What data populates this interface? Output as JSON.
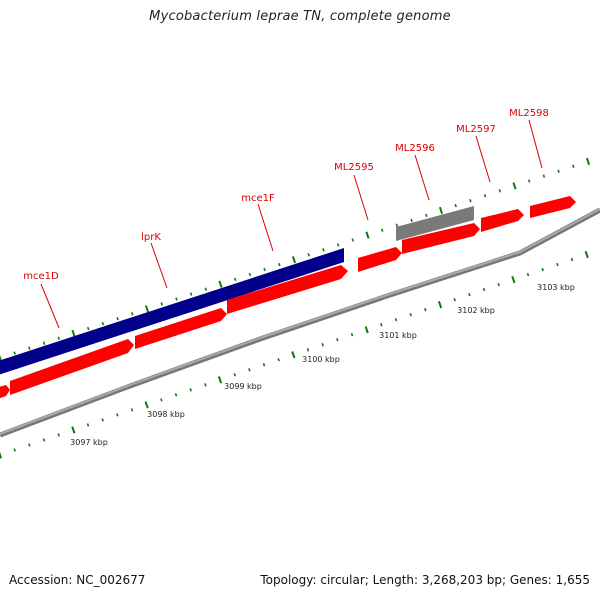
{
  "title": "Mycobacterium leprae TN, complete genome",
  "footer": {
    "accession": "Accession: NC_002677",
    "info": "Topology: circular; Length: 3,268,203 bp; Genes: 1,655"
  },
  "colors": {
    "background": "#ffffff",
    "backbone": "#999999",
    "feature_red": "#ff0000",
    "feature_blue": "#00008b",
    "feature_gray": "#7a7a7a",
    "tick_green": "#117711",
    "label_red": "#dd0000"
  },
  "scale_labels": [
    "3097 kbp",
    "3098 kbp",
    "3099 kbp",
    "3100 kbp",
    "3101 kbp",
    "3102 kbp",
    "3103 kbp"
  ],
  "gene_labels": [
    "mce1D",
    "lprK",
    "mce1F",
    "ML2595",
    "ML2596",
    "ML2597",
    "ML2598"
  ]
}
